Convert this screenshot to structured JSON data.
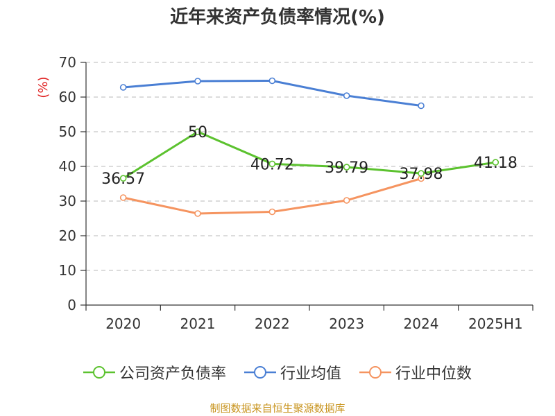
{
  "chart_data": {
    "type": "line",
    "title": "近年来资产负债率情况(%)",
    "ylabel": "(%)",
    "xlabel": "",
    "ylim": [
      0,
      70
    ],
    "yticks": [
      "0",
      "10",
      "20",
      "30",
      "40",
      "50",
      "60",
      "70"
    ],
    "categories": [
      "2020",
      "2021",
      "2022",
      "2023",
      "2024",
      "2025H1"
    ],
    "grid": true,
    "legend_position": "bottom",
    "series": [
      {
        "name": "公司资产负债率",
        "color": "#5cc22f",
        "values": [
          36.57,
          50,
          40.72,
          39.79,
          37.98,
          41.18
        ],
        "labels": [
          "36.57",
          "50",
          "40.72",
          "39.79",
          "37.98",
          "41.18"
        ]
      },
      {
        "name": "行业均值",
        "color": "#4a7fd4",
        "values": [
          62.8,
          64.6,
          64.7,
          60.4,
          57.5,
          null
        ]
      },
      {
        "name": "行业中位数",
        "color": "#f59460",
        "values": [
          31.0,
          26.4,
          26.9,
          30.2,
          36.5,
          null
        ]
      }
    ]
  },
  "source": "制图数据来自恒生聚源数据库",
  "y_axis_label_color": "#e02020",
  "axis_color": "#333333",
  "grid_color": "#c8c8c8"
}
